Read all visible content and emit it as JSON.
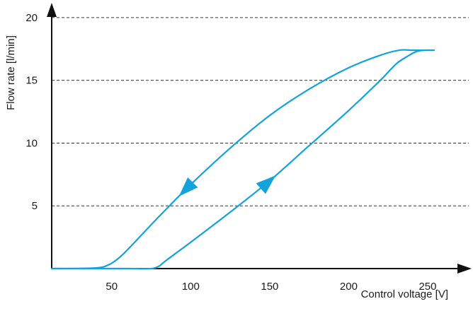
{
  "chart_data": {
    "type": "line",
    "title": "",
    "xlabel": "Control voltage [V]",
    "ylabel": "Flow rate [l/min]",
    "xlim": [
      12,
      263
    ],
    "ylim": [
      0,
      20.5
    ],
    "xticks": [
      50,
      100,
      150,
      200,
      250
    ],
    "yticks": [
      5,
      10,
      15,
      20
    ],
    "grid": "horizontal dashed at y ticks",
    "legend": "none",
    "series_color": "#12a3dc",
    "series": [
      {
        "direction": "increasing voltage",
        "x": [
          12,
          40,
          60,
          75,
          80,
          82,
          85,
          100,
          125,
          150,
          175,
          200,
          220,
          230,
          237,
          243,
          248,
          254
        ],
        "y": [
          0,
          0,
          0,
          0,
          0.2,
          0.4,
          0.7,
          2.1,
          4.5,
          7.0,
          9.8,
          12.6,
          15.0,
          16.3,
          16.9,
          17.3,
          17.4,
          17.4
        ]
      },
      {
        "direction": "decreasing voltage",
        "x": [
          254,
          248,
          240,
          232,
          220,
          200,
          175,
          150,
          125,
          100,
          85,
          75,
          60,
          55,
          52,
          48,
          40,
          12
        ],
        "y": [
          17.4,
          17.4,
          17.4,
          17.4,
          17.0,
          16.0,
          14.3,
          12.2,
          9.6,
          6.7,
          4.8,
          3.5,
          1.5,
          0.9,
          0.6,
          0.3,
          0.05,
          0
        ]
      }
    ],
    "annotations": [
      {
        "type": "arrow",
        "series_index": 1,
        "at_x": 96,
        "direction": "down-left"
      },
      {
        "type": "arrow",
        "series_index": 0,
        "at_x": 150,
        "direction": "up-right"
      }
    ]
  }
}
